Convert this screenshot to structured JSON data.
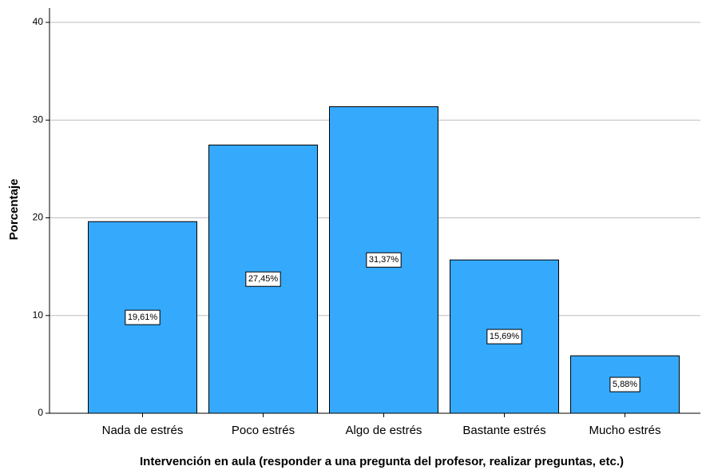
{
  "chart_data": {
    "type": "bar",
    "xlabel": "Intervención en aula (responder a una pregunta del profesor, realizar preguntas, etc.)",
    "ylabel": "Porcentaje",
    "categories": [
      "Nada de estrés",
      "Poco estrés",
      "Algo de estrés",
      "Bastante estrés",
      "Mucho estrés"
    ],
    "values": [
      19.61,
      27.45,
      31.37,
      15.69,
      5.88
    ],
    "value_labels": [
      "19,61%",
      "27,45%",
      "31,37%",
      "15,69%",
      "5,88%"
    ],
    "color": "#35a9fb",
    "ylim": [
      0,
      40
    ],
    "yticks": [
      0,
      10,
      20,
      30,
      40
    ],
    "grid": true
  }
}
